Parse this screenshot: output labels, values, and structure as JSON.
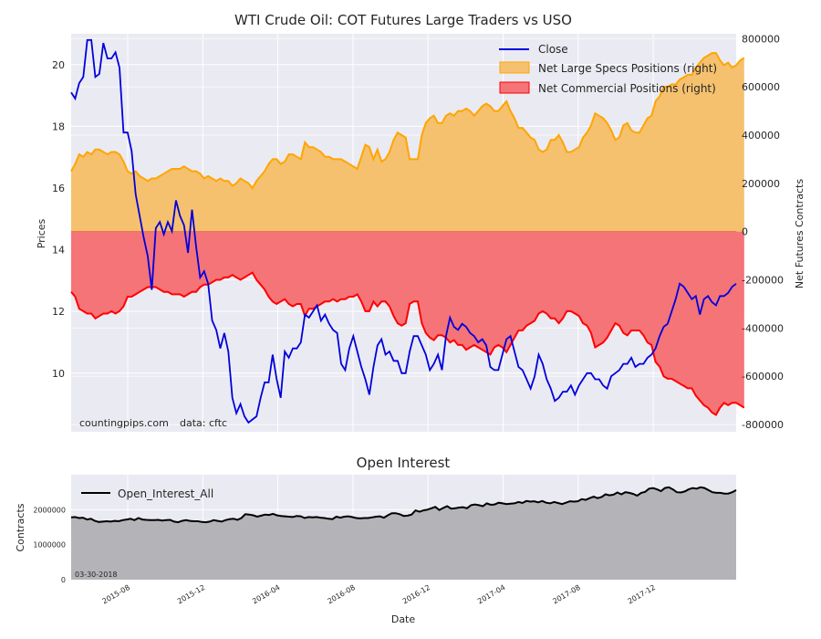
{
  "colors": {
    "background": "#eaeaf2",
    "grid": "#ffffff",
    "close": "#0000dd",
    "specs_fill": "#f5c16e",
    "specs_line": "#ffa500",
    "comm_fill": "#f47478",
    "comm_line": "#ff0000",
    "oi_fill": "#b4b4b8",
    "oi_line": "#000000"
  },
  "chart_data": [
    {
      "type": "line",
      "title": "WTI Crude Oil: COT Futures Large Traders vs USO",
      "ylabel": "Prices",
      "y2label": "Net Futures Contracts",
      "ylim": [
        8.1,
        21.0
      ],
      "y2lim": [
        -830000,
        820000
      ],
      "yticks": [
        "10",
        "12",
        "14",
        "16",
        "18",
        "20"
      ],
      "y2ticks": [
        "-800000",
        "-600000",
        "-400000",
        "-200000",
        "0",
        "200000",
        "400000",
        "600000",
        "800000"
      ],
      "grid": true,
      "legend_position": "top-right",
      "watermark": "countingpips.com",
      "source_note": "data: cftc",
      "series": [
        {
          "name": "Close",
          "axis": "left",
          "values": [
            19.1,
            18.9,
            19.4,
            19.6,
            20.8,
            20.8,
            19.6,
            19.7,
            20.7,
            20.2,
            20.2,
            20.4,
            19.9,
            17.8,
            17.8,
            17.2,
            15.8,
            15.1,
            14.4,
            13.8,
            12.7,
            14.7,
            14.9,
            14.5,
            14.9,
            14.6,
            15.6,
            15.1,
            14.8,
            13.9,
            15.3,
            14.1,
            13.1,
            13.3,
            12.9,
            11.7,
            11.4,
            10.8,
            11.3,
            10.7,
            9.2,
            8.7,
            9.0,
            8.6,
            8.4,
            8.5,
            8.6,
            9.2,
            9.7,
            9.7,
            10.6,
            9.8,
            9.2,
            10.7,
            10.5,
            10.8,
            10.8,
            11.0,
            11.9,
            11.8,
            12.0,
            12.2,
            11.7,
            11.9,
            11.6,
            11.4,
            11.3,
            10.3,
            10.1,
            10.8,
            11.2,
            10.7,
            10.2,
            9.8,
            9.3,
            10.2,
            10.9,
            11.1,
            10.6,
            10.7,
            10.4,
            10.4,
            10.0,
            10.0,
            10.7,
            11.2,
            11.2,
            10.9,
            10.6,
            10.1,
            10.3,
            10.6,
            10.1,
            11.2,
            11.8,
            11.5,
            11.4,
            11.6,
            11.5,
            11.3,
            11.2,
            11.0,
            11.1,
            10.9,
            10.2,
            10.1,
            10.1,
            10.6,
            11.1,
            11.2,
            10.7,
            10.2,
            10.1,
            9.8,
            9.5,
            9.9,
            10.6,
            10.3,
            9.8,
            9.5,
            9.1,
            9.2,
            9.4,
            9.4,
            9.6,
            9.3,
            9.6,
            9.8,
            10.0,
            10.0,
            9.8,
            9.8,
            9.6,
            9.5,
            9.9,
            10.0,
            10.1,
            10.3,
            10.3,
            10.5,
            10.2,
            10.3,
            10.3,
            10.5,
            10.6,
            10.8,
            11.2,
            11.5,
            11.6,
            12.0,
            12.4,
            12.9,
            12.8,
            12.6,
            12.4,
            12.5,
            11.9,
            12.4,
            12.5,
            12.3,
            12.2,
            12.5,
            12.5,
            12.6,
            12.8,
            12.9
          ]
        },
        {
          "name": "Net Large Specs Positions (right)",
          "axis": "right",
          "values": [
            250000,
            280000,
            320000,
            310000,
            330000,
            320000,
            340000,
            340000,
            330000,
            320000,
            330000,
            330000,
            320000,
            290000,
            250000,
            240000,
            250000,
            230000,
            220000,
            210000,
            220000,
            220000,
            230000,
            240000,
            250000,
            260000,
            260000,
            260000,
            270000,
            260000,
            250000,
            250000,
            240000,
            220000,
            230000,
            220000,
            210000,
            220000,
            210000,
            210000,
            190000,
            200000,
            220000,
            210000,
            200000,
            180000,
            210000,
            230000,
            250000,
            280000,
            300000,
            300000,
            280000,
            290000,
            320000,
            320000,
            310000,
            300000,
            370000,
            350000,
            350000,
            340000,
            330000,
            310000,
            310000,
            300000,
            300000,
            300000,
            290000,
            280000,
            270000,
            260000,
            310000,
            360000,
            350000,
            300000,
            340000,
            290000,
            300000,
            330000,
            380000,
            410000,
            400000,
            390000,
            300000,
            300000,
            300000,
            400000,
            450000,
            470000,
            480000,
            450000,
            450000,
            480000,
            490000,
            480000,
            500000,
            500000,
            510000,
            500000,
            480000,
            500000,
            520000,
            530000,
            520000,
            500000,
            500000,
            520000,
            540000,
            500000,
            470000,
            430000,
            430000,
            410000,
            390000,
            380000,
            340000,
            330000,
            340000,
            380000,
            380000,
            400000,
            370000,
            330000,
            330000,
            340000,
            350000,
            390000,
            410000,
            440000,
            490000,
            480000,
            470000,
            450000,
            420000,
            380000,
            390000,
            440000,
            450000,
            420000,
            410000,
            410000,
            440000,
            470000,
            480000,
            540000,
            560000,
            600000,
            600000,
            610000,
            610000,
            630000,
            640000,
            650000,
            650000,
            680000,
            700000,
            720000,
            730000,
            740000,
            740000,
            710000,
            690000,
            700000,
            680000,
            690000,
            710000,
            720000
          ]
        },
        {
          "name": "Net Commercial Positions (right)",
          "axis": "right",
          "values": [
            -250000,
            -270000,
            -320000,
            -330000,
            -340000,
            -340000,
            -360000,
            -350000,
            -340000,
            -340000,
            -330000,
            -340000,
            -330000,
            -310000,
            -270000,
            -270000,
            -260000,
            -250000,
            -240000,
            -230000,
            -230000,
            -230000,
            -240000,
            -250000,
            -250000,
            -260000,
            -260000,
            -260000,
            -270000,
            -260000,
            -250000,
            -250000,
            -230000,
            -220000,
            -220000,
            -210000,
            -200000,
            -200000,
            -190000,
            -190000,
            -180000,
            -190000,
            -200000,
            -190000,
            -180000,
            -170000,
            -200000,
            -220000,
            -240000,
            -270000,
            -290000,
            -300000,
            -290000,
            -280000,
            -300000,
            -310000,
            -300000,
            -300000,
            -350000,
            -320000,
            -320000,
            -310000,
            -300000,
            -290000,
            -290000,
            -280000,
            -290000,
            -280000,
            -280000,
            -270000,
            -270000,
            -260000,
            -290000,
            -330000,
            -330000,
            -290000,
            -310000,
            -290000,
            -290000,
            -310000,
            -350000,
            -380000,
            -390000,
            -380000,
            -300000,
            -290000,
            -290000,
            -380000,
            -420000,
            -440000,
            -450000,
            -430000,
            -430000,
            -440000,
            -460000,
            -450000,
            -470000,
            -470000,
            -490000,
            -480000,
            -470000,
            -480000,
            -490000,
            -500000,
            -510000,
            -480000,
            -470000,
            -480000,
            -500000,
            -470000,
            -440000,
            -410000,
            -410000,
            -390000,
            -380000,
            -370000,
            -340000,
            -330000,
            -340000,
            -360000,
            -360000,
            -380000,
            -360000,
            -330000,
            -330000,
            -340000,
            -350000,
            -380000,
            -390000,
            -420000,
            -480000,
            -470000,
            -460000,
            -440000,
            -410000,
            -380000,
            -390000,
            -420000,
            -430000,
            -410000,
            -410000,
            -410000,
            -430000,
            -460000,
            -470000,
            -540000,
            -560000,
            -600000,
            -610000,
            -610000,
            -620000,
            -630000,
            -640000,
            -650000,
            -650000,
            -680000,
            -700000,
            -720000,
            -730000,
            -750000,
            -760000,
            -730000,
            -710000,
            -720000,
            -710000,
            -710000,
            -720000,
            -730000
          ]
        }
      ]
    },
    {
      "type": "area",
      "title": "Open Interest",
      "xlabel": "Date",
      "ylabel": "Contracts",
      "ylim": [
        0,
        3000000
      ],
      "yticks": [
        "0",
        "1000000",
        "2000000"
      ],
      "xtick_labels": [
        "2015-08",
        "2015-12",
        "2016-04",
        "2016-08",
        "2016-12",
        "2017-04",
        "2017-08",
        "2017-12"
      ],
      "grid": true,
      "legend_position": "top-left",
      "date_note": "03-30-2018",
      "series": [
        {
          "name": "Open_Interest_All",
          "values": [
            1780000,
            1790000,
            1760000,
            1770000,
            1720000,
            1740000,
            1680000,
            1650000,
            1660000,
            1670000,
            1660000,
            1680000,
            1670000,
            1700000,
            1720000,
            1740000,
            1700000,
            1760000,
            1720000,
            1710000,
            1700000,
            1700000,
            1710000,
            1690000,
            1700000,
            1710000,
            1660000,
            1640000,
            1680000,
            1700000,
            1680000,
            1670000,
            1670000,
            1650000,
            1640000,
            1660000,
            1700000,
            1680000,
            1660000,
            1700000,
            1730000,
            1740000,
            1710000,
            1760000,
            1870000,
            1860000,
            1840000,
            1800000,
            1830000,
            1860000,
            1850000,
            1880000,
            1840000,
            1820000,
            1810000,
            1800000,
            1790000,
            1820000,
            1810000,
            1760000,
            1790000,
            1780000,
            1790000,
            1770000,
            1760000,
            1740000,
            1730000,
            1800000,
            1770000,
            1800000,
            1810000,
            1790000,
            1760000,
            1750000,
            1760000,
            1760000,
            1780000,
            1800000,
            1810000,
            1770000,
            1840000,
            1900000,
            1900000,
            1870000,
            1820000,
            1830000,
            1860000,
            1980000,
            1940000,
            1980000,
            2000000,
            2040000,
            2080000,
            1990000,
            2050000,
            2100000,
            2030000,
            2040000,
            2060000,
            2070000,
            2040000,
            2130000,
            2150000,
            2130000,
            2100000,
            2180000,
            2140000,
            2150000,
            2200000,
            2180000,
            2160000,
            2170000,
            2180000,
            2220000,
            2190000,
            2250000,
            2230000,
            2240000,
            2210000,
            2250000,
            2200000,
            2180000,
            2220000,
            2190000,
            2160000,
            2200000,
            2240000,
            2230000,
            2240000,
            2300000,
            2280000,
            2330000,
            2370000,
            2330000,
            2360000,
            2440000,
            2410000,
            2430000,
            2490000,
            2440000,
            2500000,
            2480000,
            2450000,
            2400000,
            2480000,
            2510000,
            2600000,
            2620000,
            2580000,
            2530000,
            2620000,
            2640000,
            2580000,
            2500000,
            2490000,
            2520000,
            2580000,
            2620000,
            2600000,
            2640000,
            2620000,
            2560000,
            2500000,
            2480000,
            2480000,
            2460000,
            2460000,
            2500000,
            2560000
          ]
        }
      ]
    }
  ]
}
